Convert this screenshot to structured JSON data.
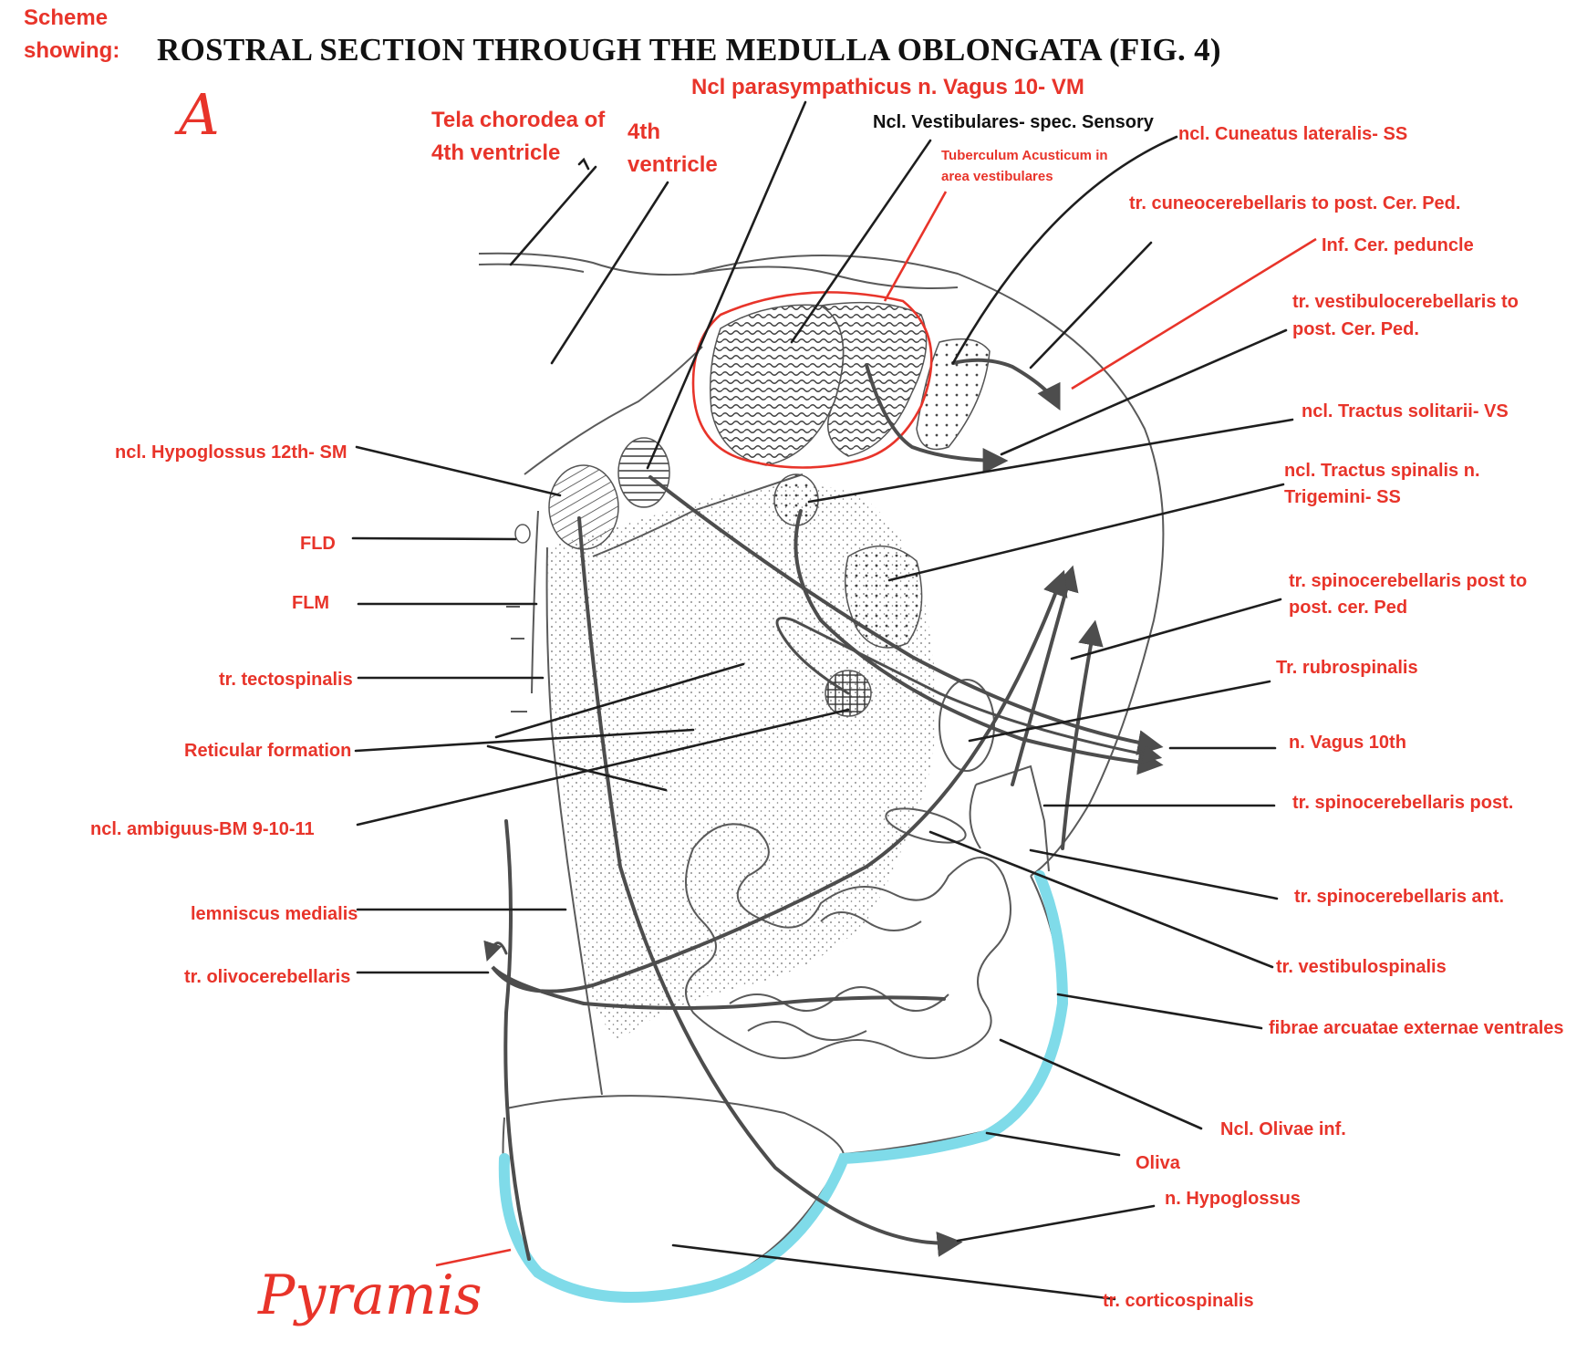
{
  "header": {
    "scheme_label_line1": "Scheme",
    "scheme_label_line2": "showing:",
    "title": "ROSTRAL SECTION THROUGH THE MEDULLA OBLONGATA (FIG. 4)",
    "handwritten_letter": "A"
  },
  "labels_top": {
    "ncl_parasympathicus": "Ncl parasympathicus n. Vagus 10- VM",
    "tela_line1": "Tela chorodea of",
    "tela_line2": "4th ventricle",
    "fourth_line1": "4th",
    "fourth_line2": "ventricle",
    "ncl_vestibulares": "Ncl. Vestibulares- spec. Sensory",
    "tuberculum_line1": "Tuberculum Acusticum in",
    "tuberculum_line2": "area vestibulares"
  },
  "labels_left": {
    "hypoglossus": "ncl. Hypoglossus 12th- SM",
    "fld": "FLD",
    "flm": "FLM",
    "tectospinalis": "tr. tectospinalis",
    "reticular": "Reticular formation",
    "ambiguus": "ncl. ambiguus-BM 9-10-11",
    "lemniscus": "lemniscus medialis",
    "olivocerebellaris": "tr. olivocerebellaris",
    "pyramis": "Pyramis"
  },
  "labels_right": {
    "cuneatus": "ncl. Cuneatus lateralis- SS",
    "cuneocerebellaris": "tr. cuneocerebellaris to post. Cer. Ped.",
    "inf_cer_peduncle": "Inf. Cer. peduncle",
    "vestibulocerebellaris_line1": "tr. vestibulocerebellaris to",
    "vestibulocerebellaris_line2": "post. Cer. Ped.",
    "solitarii": "ncl. Tractus solitarii- VS",
    "spinalis_line1": "ncl. Tractus spinalis n.",
    "spinalis_line2": "Trigemini- SS",
    "spinocerebellaris_post_to_line1": "tr. spinocerebellaris post to",
    "spinocerebellaris_post_to_line2": "post. cer. Ped",
    "rubrospinalis": "Tr. rubrospinalis",
    "vagus": "n. Vagus 10th",
    "spinocerebellaris_post": "tr. spinocerebellaris post.",
    "spinocerebellaris_ant": "tr. spinocerebellaris ant.",
    "vestibulospinalis": "tr. vestibulospinalis",
    "fibrae": "fibrae arcuatae externae ventrales",
    "olivae": "Ncl. Olivae inf.",
    "oliva": "Oliva",
    "hypoglossus_nerve": "n. Hypoglossus",
    "corticospinalis": "tr. corticospinalis"
  },
  "colors": {
    "label_red": "#e8342a",
    "title_black": "#111111",
    "highlight_cyan": "#7fdbe9",
    "drawing_gray": "#4d4d4d"
  }
}
